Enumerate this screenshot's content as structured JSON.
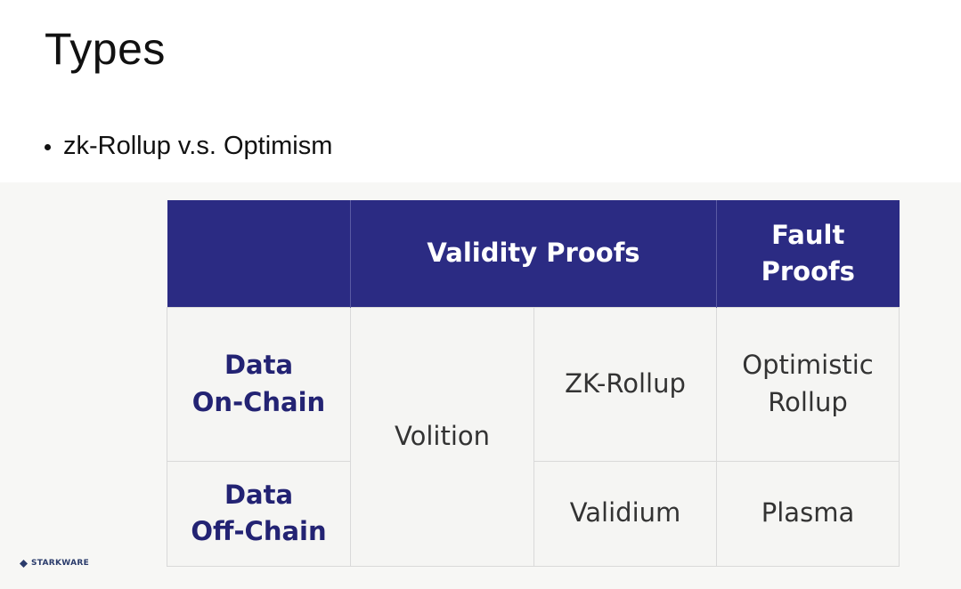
{
  "slide": {
    "title": "Types",
    "bullet": "zk-Rollup v.s. Optimism"
  },
  "table": {
    "header": {
      "validity_proofs": "Validity Proofs",
      "fault_proofs_line1": "Fault",
      "fault_proofs_line2": "Proofs"
    },
    "rows": {
      "on_chain_label_line1": "Data",
      "on_chain_label_line2": "On-Chain",
      "off_chain_label_line1": "Data",
      "off_chain_label_line2": "Off-Chain"
    },
    "cells": {
      "volition": "Volition",
      "zk_rollup": "ZK-Rollup",
      "optimistic_rollup_line1": "Optimistic",
      "optimistic_rollup_line2": "Rollup",
      "validium": "Validium",
      "plasma": "Plasma"
    },
    "colors": {
      "header_bg": "#2b2b83",
      "header_text": "#ffffff",
      "row_label_text": "#232373",
      "cell_bg": "#f5f5f3"
    }
  },
  "logo": {
    "text": "STARKWARE",
    "icon": "starkware-diamond-icon"
  }
}
